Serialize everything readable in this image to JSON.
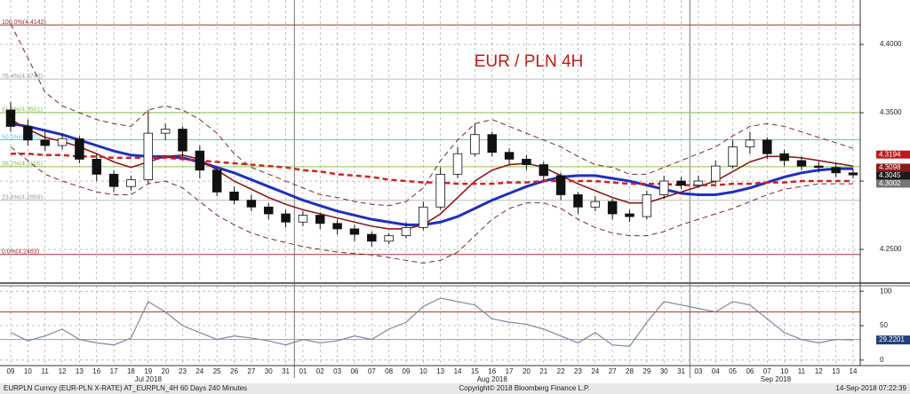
{
  "chart_data": [
    {
      "type": "candlestick",
      "title": "EUR / PLN 4H",
      "categories": [
        "09",
        "10",
        "11",
        "12",
        "13",
        "16",
        "17",
        "18",
        "19",
        "20",
        "23",
        "24",
        "25",
        "26",
        "27",
        "30",
        "31",
        "01",
        "02",
        "03",
        "06",
        "07",
        "08",
        "09",
        "10",
        "13",
        "14",
        "15",
        "16",
        "17",
        "20",
        "21",
        "22",
        "23",
        "24",
        "27",
        "28",
        "29",
        "30",
        "31",
        "03",
        "04",
        "05",
        "06",
        "07",
        "10",
        "11",
        "12",
        "13",
        "14"
      ],
      "open": [
        4.352,
        4.34,
        4.33,
        4.326,
        4.331,
        4.316,
        4.305,
        4.296,
        4.301,
        4.335,
        4.338,
        4.322,
        4.308,
        4.292,
        4.286,
        4.281,
        4.276,
        4.27,
        4.275,
        4.269,
        4.265,
        4.261,
        4.256,
        4.26,
        4.266,
        4.281,
        4.305,
        4.32,
        4.334,
        4.321,
        4.316,
        4.312,
        4.304,
        4.29,
        4.281,
        4.285,
        4.276,
        4.274,
        4.29,
        4.3,
        4.297,
        4.3,
        4.311,
        4.325,
        4.33,
        4.32,
        4.315,
        4.311,
        4.31,
        4.306
      ],
      "high": [
        4.358,
        4.345,
        4.336,
        4.335,
        4.333,
        4.32,
        4.308,
        4.304,
        4.352,
        4.342,
        4.34,
        4.326,
        4.31,
        4.296,
        4.29,
        4.284,
        4.279,
        4.278,
        4.277,
        4.272,
        4.268,
        4.263,
        4.262,
        4.27,
        4.285,
        4.31,
        4.325,
        4.342,
        4.336,
        4.324,
        4.319,
        4.314,
        4.306,
        4.292,
        4.289,
        4.287,
        4.279,
        4.293,
        4.304,
        4.303,
        4.304,
        4.315,
        4.33,
        4.336,
        4.332,
        4.323,
        4.318,
        4.314,
        4.313,
        4.309
      ],
      "low": [
        4.336,
        4.326,
        4.322,
        4.323,
        4.313,
        4.3,
        4.292,
        4.293,
        4.298,
        4.33,
        4.318,
        4.302,
        4.289,
        4.283,
        4.278,
        4.272,
        4.266,
        4.267,
        4.265,
        4.261,
        4.256,
        4.252,
        4.254,
        4.258,
        4.264,
        4.279,
        4.302,
        4.318,
        4.318,
        4.312,
        4.308,
        4.3,
        4.286,
        4.276,
        4.278,
        4.272,
        4.27,
        4.272,
        4.287,
        4.294,
        4.295,
        4.298,
        4.309,
        4.32,
        4.316,
        4.311,
        4.308,
        4.306,
        4.303,
        4.302
      ],
      "close": [
        4.34,
        4.33,
        4.326,
        4.331,
        4.316,
        4.305,
        4.296,
        4.301,
        4.335,
        4.338,
        4.322,
        4.308,
        4.292,
        4.286,
        4.281,
        4.276,
        4.27,
        4.275,
        4.269,
        4.265,
        4.261,
        4.256,
        4.26,
        4.266,
        4.281,
        4.305,
        4.32,
        4.334,
        4.321,
        4.316,
        4.312,
        4.304,
        4.29,
        4.281,
        4.285,
        4.276,
        4.274,
        4.29,
        4.3,
        4.297,
        4.3,
        4.311,
        4.325,
        4.33,
        4.32,
        4.315,
        4.311,
        4.31,
        4.306,
        4.3045
      ],
      "candle_color": "#111111",
      "series": [
        {
          "color": "#1f2fbf",
          "width": 3,
          "dash": false,
          "values": [
            4.342,
            4.34,
            4.337,
            4.334,
            4.33,
            4.326,
            4.322,
            4.319,
            4.318,
            4.318,
            4.317,
            4.314,
            4.31,
            4.306,
            4.301,
            4.296,
            4.291,
            4.286,
            4.282,
            4.278,
            4.275,
            4.272,
            4.27,
            4.268,
            4.268,
            4.27,
            4.274,
            4.28,
            4.286,
            4.291,
            4.296,
            4.3,
            4.303,
            4.304,
            4.304,
            4.302,
            4.3,
            4.297,
            4.294,
            4.291,
            4.29,
            4.29,
            4.292,
            4.295,
            4.299,
            4.303,
            4.306,
            4.308,
            4.309,
            4.309
          ]
        },
        {
          "color": "#8b1a1a",
          "width": 1.6,
          "dash": false,
          "values": [
            4.345,
            4.338,
            4.332,
            4.329,
            4.325,
            4.32,
            4.314,
            4.31,
            4.314,
            4.318,
            4.319,
            4.316,
            4.308,
            4.3,
            4.294,
            4.288,
            4.283,
            4.279,
            4.276,
            4.273,
            4.27,
            4.267,
            4.265,
            4.265,
            4.268,
            4.276,
            4.288,
            4.3,
            4.308,
            4.312,
            4.313,
            4.31,
            4.304,
            4.298,
            4.293,
            4.288,
            4.284,
            4.284,
            4.288,
            4.292,
            4.296,
            4.3,
            4.307,
            4.314,
            4.318,
            4.318,
            4.317,
            4.315,
            4.313,
            4.311
          ]
        },
        {
          "color": "#d42020",
          "width": 2.5,
          "dash": true,
          "values": [
            4.32,
            4.32,
            4.319,
            4.319,
            4.318,
            4.318,
            4.317,
            4.317,
            4.317,
            4.317,
            4.316,
            4.315,
            4.314,
            4.313,
            4.312,
            4.311,
            4.31,
            4.308,
            4.307,
            4.305,
            4.304,
            4.303,
            4.301,
            4.3,
            4.299,
            4.299,
            4.298,
            4.298,
            4.298,
            4.299,
            4.299,
            4.3,
            4.3,
            4.3,
            4.3,
            4.299,
            4.298,
            4.298,
            4.298,
            4.297,
            4.297,
            4.297,
            4.298,
            4.298,
            4.299,
            4.299,
            4.3,
            4.3,
            4.3,
            4.3
          ]
        },
        {
          "color": "#7a2a2a",
          "width": 1,
          "dash": true,
          "values": [
            4.415,
            4.39,
            4.365,
            4.355,
            4.35,
            4.345,
            4.342,
            4.34,
            4.352,
            4.355,
            4.352,
            4.345,
            4.335,
            4.32,
            4.31,
            4.305,
            4.3,
            4.295,
            4.29,
            4.288,
            4.285,
            4.283,
            4.282,
            4.285,
            4.295,
            4.315,
            4.33,
            4.342,
            4.345,
            4.34,
            4.335,
            4.33,
            4.325,
            4.318,
            4.312,
            4.31,
            4.305,
            4.305,
            4.31,
            4.315,
            4.32,
            4.325,
            4.333,
            4.34,
            4.342,
            4.34,
            4.336,
            4.332,
            4.328,
            4.324
          ]
        },
        {
          "color": "#7a2a2a",
          "width": 1,
          "dash": true,
          "values": [
            4.325,
            4.315,
            4.305,
            4.3,
            4.296,
            4.292,
            4.29,
            4.29,
            4.298,
            4.3,
            4.295,
            4.285,
            4.275,
            4.268,
            4.262,
            4.258,
            4.255,
            4.252,
            4.25,
            4.248,
            4.247,
            4.246,
            4.244,
            4.242,
            4.24,
            4.242,
            4.248,
            4.26,
            4.272,
            4.28,
            4.284,
            4.284,
            4.28,
            4.272,
            4.266,
            4.262,
            4.26,
            4.26,
            4.263,
            4.268,
            4.272,
            4.276,
            4.28,
            4.285,
            4.29,
            4.294,
            4.296,
            4.298,
            4.298,
            4.298
          ]
        }
      ],
      "fib_levels": [
        {
          "value": 4.4142,
          "label": "100.0%(4.4142)",
          "color": "#a03030"
        },
        {
          "value": 4.3746,
          "label": "76.4%(4.3746)",
          "color": "#bbbbbb"
        },
        {
          "value": 4.3501,
          "label": "61.8%(4.3501)",
          "color": "#8cc152"
        },
        {
          "value": 4.3302,
          "label": "50.0%(4.3302)",
          "color": "#5bc8e0"
        },
        {
          "value": 4.3105,
          "label": "38.2%(4.3105)",
          "color": "#8cc152"
        },
        {
          "value": 4.2859,
          "label": "23.6%(4.2859)",
          "color": "#bbbbbb"
        },
        {
          "value": 4.2463,
          "label": "0.0%(4.2463)",
          "color": "#a03030"
        }
      ],
      "price_tags": [
        {
          "value": 4.3194,
          "color": "#c01818"
        },
        {
          "value": 4.3098,
          "color": "#8b1a1a"
        },
        {
          "value": 4.3045,
          "color": "#1a1a1a"
        },
        {
          "value": 4.3002,
          "color": "#777777"
        }
      ],
      "ylim": [
        4.226,
        4.4325
      ],
      "yticks": [
        {
          "value": 4.25,
          "label": "4.2500"
        },
        {
          "value": 4.3,
          "label": "4.3000"
        },
        {
          "value": 4.35,
          "label": "4.3500"
        },
        {
          "value": 4.4,
          "label": "4.4000"
        }
      ],
      "grid": true
    },
    {
      "type": "line",
      "values": [
        40,
        28,
        35,
        45,
        30,
        25,
        22,
        32,
        85,
        70,
        50,
        40,
        30,
        35,
        32,
        28,
        22,
        30,
        25,
        28,
        35,
        30,
        45,
        55,
        78,
        90,
        85,
        80,
        60,
        55,
        52,
        45,
        35,
        25,
        40,
        22,
        20,
        55,
        85,
        80,
        75,
        70,
        85,
        80,
        60,
        40,
        30,
        25,
        30,
        29.2201
      ],
      "color": "#7a8aa0",
      "last_value": 29.2201,
      "levels": [
        {
          "value": 70,
          "color": "#c03030"
        },
        {
          "value": 30,
          "color": "#8cc152"
        }
      ],
      "ylim": [
        -8,
        108
      ],
      "yticks": [
        0,
        50,
        100
      ],
      "grid": true
    }
  ],
  "month_labels": [
    "Jul 2018",
    "Aug 2018",
    "Sep 2018"
  ],
  "footer": {
    "left": "EURPLN Curncy (EUR-PLN X-RATE) AT_EURPLN_4H 60 Days 240 Minutes",
    "center": "Copyright© 2018 Bloomberg Finance L.P.",
    "right": "14-Sep-2018 07:22:39"
  }
}
